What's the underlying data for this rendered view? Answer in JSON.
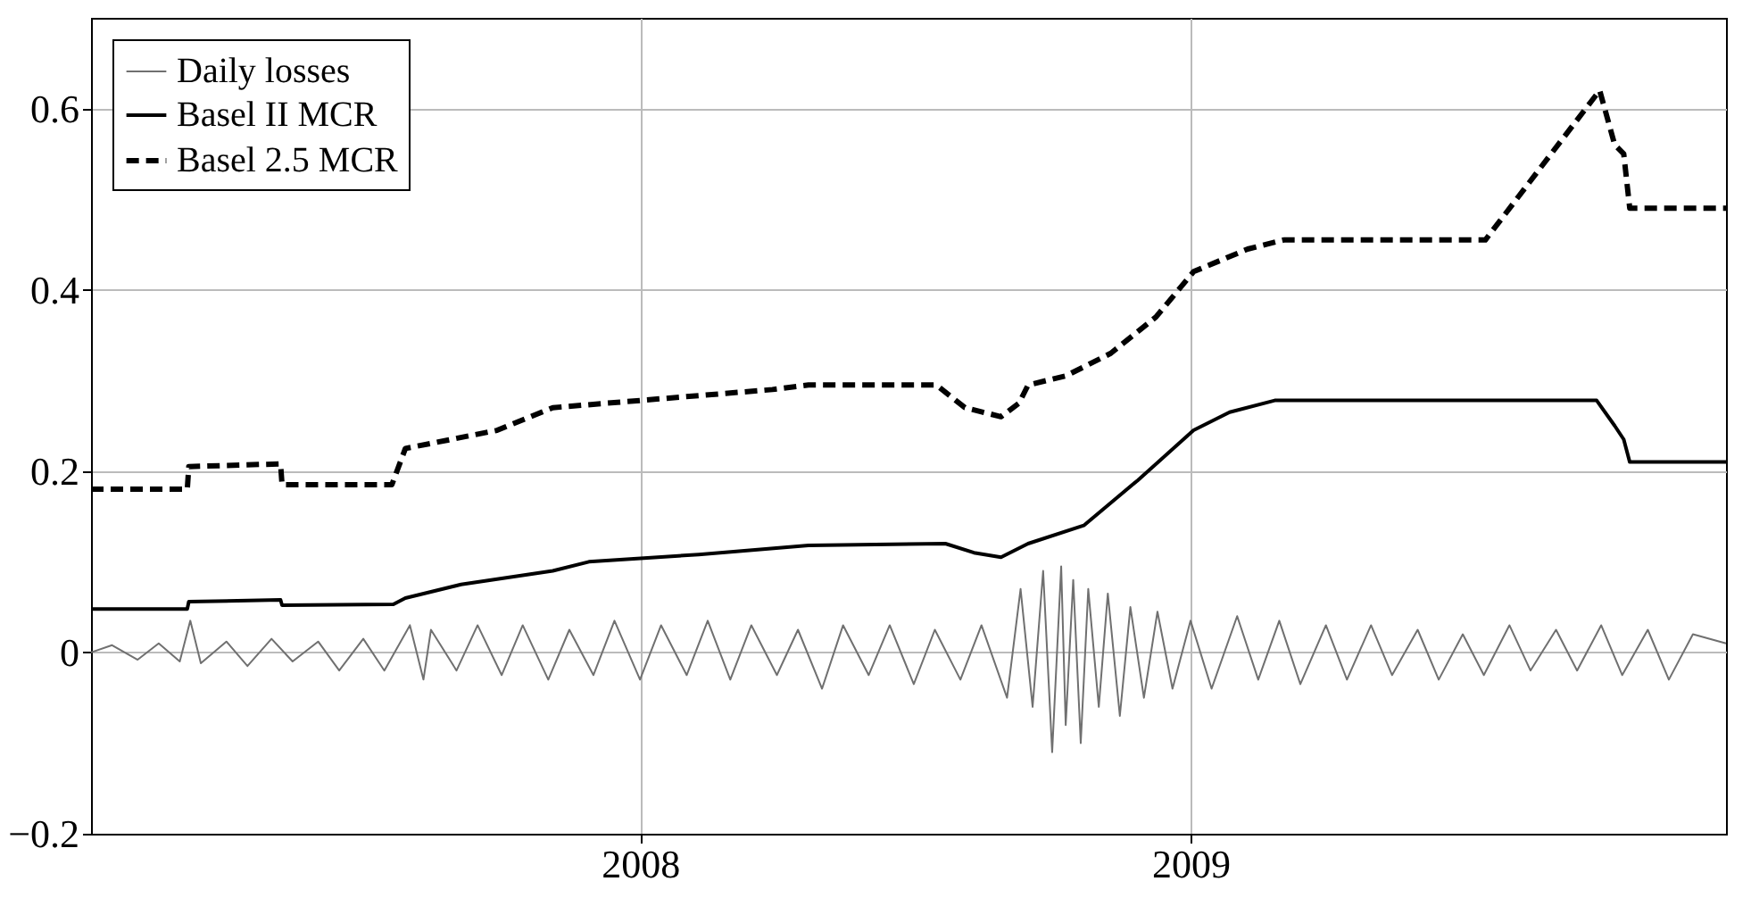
{
  "chart_data": {
    "type": "line",
    "xlim": [
      "2007-01-01",
      "2009-12-23"
    ],
    "ylim": [
      -0.2,
      0.7
    ],
    "xticks": [
      {
        "value": "2008-01-01",
        "label": "2008"
      },
      {
        "value": "2009-01-01",
        "label": "2009"
      }
    ],
    "yticks": [
      -0.2,
      0,
      0.2,
      0.4,
      0.6
    ],
    "grid": true,
    "legend": "top left",
    "marker": "none",
    "series": [
      {
        "name": "Daily losses",
        "color": "#707070",
        "line_style": "solid",
        "x": [
          "2007-01-01",
          "2007-01-15",
          "2007-02-01",
          "2007-02-15",
          "2007-03-01",
          "2007-03-08",
          "2007-03-15",
          "2007-04-01",
          "2007-04-15",
          "2007-05-01",
          "2007-05-15",
          "2007-06-01",
          "2007-06-15",
          "2007-07-01",
          "2007-07-15",
          "2007-08-01",
          "2007-08-10",
          "2007-08-15",
          "2007-09-01",
          "2007-09-15",
          "2007-10-01",
          "2007-10-15",
          "2007-11-01",
          "2007-11-15",
          "2007-12-01",
          "2007-12-15",
          "2008-01-01",
          "2008-01-15",
          "2008-02-01",
          "2008-02-15",
          "2008-03-01",
          "2008-03-15",
          "2008-04-01",
          "2008-04-15",
          "2008-05-01",
          "2008-05-15",
          "2008-06-01",
          "2008-06-15",
          "2008-07-01",
          "2008-07-15",
          "2008-08-01",
          "2008-08-15",
          "2008-09-01",
          "2008-09-10",
          "2008-09-18",
          "2008-09-25",
          "2008-10-01",
          "2008-10-07",
          "2008-10-10",
          "2008-10-15",
          "2008-10-20",
          "2008-10-25",
          "2008-11-01",
          "2008-11-07",
          "2008-11-15",
          "2008-11-22",
          "2008-12-01",
          "2008-12-10",
          "2008-12-20",
          "2009-01-01",
          "2009-01-15",
          "2009-02-01",
          "2009-02-15",
          "2009-03-01",
          "2009-03-15",
          "2009-04-01",
          "2009-04-15",
          "2009-05-01",
          "2009-05-15",
          "2009-06-01",
          "2009-06-15",
          "2009-07-01",
          "2009-07-15",
          "2009-08-01",
          "2009-08-15",
          "2009-09-01",
          "2009-09-15",
          "2009-10-01",
          "2009-10-15",
          "2009-11-01",
          "2009-11-15",
          "2009-12-01",
          "2009-12-23"
        ],
        "values": [
          0.0,
          0.008,
          -0.008,
          0.01,
          -0.01,
          0.035,
          -0.012,
          0.012,
          -0.015,
          0.015,
          -0.01,
          0.012,
          -0.02,
          0.015,
          -0.02,
          0.03,
          -0.03,
          0.025,
          -0.02,
          0.03,
          -0.025,
          0.03,
          -0.03,
          0.025,
          -0.025,
          0.035,
          -0.03,
          0.03,
          -0.025,
          0.035,
          -0.03,
          0.03,
          -0.025,
          0.025,
          -0.04,
          0.03,
          -0.025,
          0.03,
          -0.035,
          0.025,
          -0.03,
          0.03,
          -0.05,
          0.07,
          -0.06,
          0.09,
          -0.11,
          0.095,
          -0.08,
          0.08,
          -0.1,
          0.07,
          -0.06,
          0.065,
          -0.07,
          0.05,
          -0.05,
          0.045,
          -0.04,
          0.035,
          -0.04,
          0.04,
          -0.03,
          0.035,
          -0.035,
          0.03,
          -0.03,
          0.03,
          -0.025,
          0.025,
          -0.03,
          0.02,
          -0.025,
          0.03,
          -0.02,
          0.025,
          -0.02,
          0.03,
          -0.025,
          0.025,
          -0.03,
          0.02,
          0.01
        ]
      },
      {
        "name": "Basel II MCR",
        "color": "#000000",
        "line_style": "solid",
        "x": [
          "2007-01-01",
          "2007-03-06",
          "2007-03-07",
          "2007-05-07",
          "2007-05-08",
          "2007-07-21",
          "2007-07-29",
          "2007-09-04",
          "2007-11-04",
          "2007-11-28",
          "2008-02-09",
          "2008-04-22",
          "2008-07-22",
          "2008-08-10",
          "2008-08-28",
          "2008-09-15",
          "2008-10-22",
          "2008-11-27",
          "2009-01-03",
          "2009-01-27",
          "2009-02-26",
          "2009-09-28",
          "2009-10-10",
          "2009-10-16",
          "2009-10-20",
          "2009-12-23"
        ],
        "values": [
          0.048,
          0.048,
          0.056,
          0.058,
          0.052,
          0.053,
          0.06,
          0.075,
          0.09,
          0.1,
          0.108,
          0.118,
          0.12,
          0.11,
          0.105,
          0.12,
          0.14,
          0.19,
          0.245,
          0.265,
          0.278,
          0.278,
          0.25,
          0.235,
          0.21,
          0.21
        ]
      },
      {
        "name": "Basel 2.5 MCR",
        "color": "#000000",
        "line_style": "dashed",
        "x": [
          "2007-01-01",
          "2007-03-06",
          "2007-03-07",
          "2007-05-07",
          "2007-05-08",
          "2007-07-20",
          "2007-07-29",
          "2007-09-28",
          "2007-11-04",
          "2008-01-16",
          "2008-03-29",
          "2008-04-22",
          "2008-07-16",
          "2008-08-04",
          "2008-08-28",
          "2008-09-09",
          "2008-09-15",
          "2008-10-10",
          "2008-11-09",
          "2008-12-09",
          "2009-01-03",
          "2009-02-08",
          "2009-03-04",
          "2009-07-16",
          "2009-09-30",
          "2009-10-10",
          "2009-10-16",
          "2009-10-20",
          "2009-12-23"
        ],
        "values": [
          0.18,
          0.18,
          0.205,
          0.208,
          0.185,
          0.185,
          0.225,
          0.245,
          0.27,
          0.28,
          0.29,
          0.295,
          0.295,
          0.27,
          0.26,
          0.275,
          0.295,
          0.305,
          0.33,
          0.37,
          0.42,
          0.445,
          0.455,
          0.455,
          0.62,
          0.56,
          0.55,
          0.49,
          0.49
        ]
      }
    ]
  }
}
